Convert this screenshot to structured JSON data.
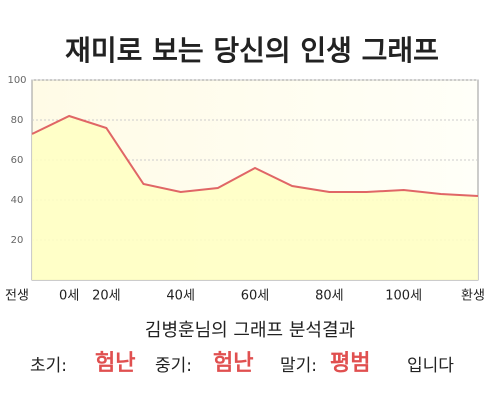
{
  "chart_data": {
    "type": "area",
    "title": "재미로 보는 당신의 인생 그래프",
    "categories": [
      "전생",
      "0세",
      "20세",
      null,
      "40세",
      null,
      "60세",
      null,
      "80세",
      null,
      "100세",
      null,
      "환생"
    ],
    "values": [
      73,
      82,
      76,
      48,
      44,
      46,
      56,
      47,
      44,
      44,
      45,
      43,
      42
    ],
    "color": "#e06666",
    "fill": "#ffffc4",
    "ylim": [
      0,
      100
    ],
    "yticks": [
      20,
      40,
      60,
      80,
      100
    ],
    "grid": true
  },
  "result": {
    "heading": "김병훈님의 그래프 분석결과",
    "parts": [
      {
        "label": "초기:",
        "verdict": "험난"
      },
      {
        "label": "중기:",
        "verdict": "험난"
      },
      {
        "label": "말기:",
        "verdict": "평범"
      }
    ],
    "ending": "입니다"
  }
}
